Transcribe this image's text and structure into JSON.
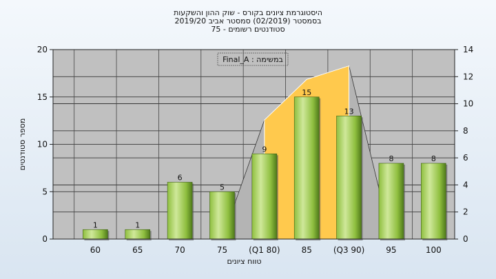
{
  "chart_data": {
    "type": "bar",
    "title_lines": [
      "היסטוגרמת ציונים בקורס - שוק ההון והשקעות",
      "בסמסטר  (02/2019)  סמסטר אביב 2019/20",
      "סטודנטים רשומים - 75"
    ],
    "legend_text": "Final_A : במשימה",
    "categories": [
      "60",
      "65",
      "70",
      "75",
      "(Q1 80)",
      "85",
      "(Q3 90)",
      "95",
      "100"
    ],
    "values": [
      1,
      1,
      6,
      5,
      9,
      15,
      13,
      8,
      8
    ],
    "data_labels": [
      "1",
      "1",
      "6",
      "5",
      "9",
      "15",
      "13",
      "8",
      "8"
    ],
    "area_values": [
      null,
      null,
      null,
      null,
      8.8,
      11.8,
      12.8,
      null,
      null
    ],
    "xlabel": "טווח ציונים",
    "ylabel": "מספר סטודנטים",
    "ylim": [
      0,
      20
    ],
    "y_ticks": [
      "0",
      "5",
      "10",
      "15",
      "20"
    ],
    "y2lim": [
      0,
      14
    ],
    "y2_ticks": [
      "0",
      "2",
      "4",
      "6",
      "8",
      "10",
      "12",
      "14"
    ],
    "grid": true,
    "colors": {
      "plot_bg": "#c0c0c0",
      "bar_light": "#cfe89a",
      "bar_mid": "#8fbf3f",
      "bar_dark": "#4f7a1a",
      "area_fill": "#ffc94d",
      "gray_area": "#b4b4b4"
    }
  }
}
